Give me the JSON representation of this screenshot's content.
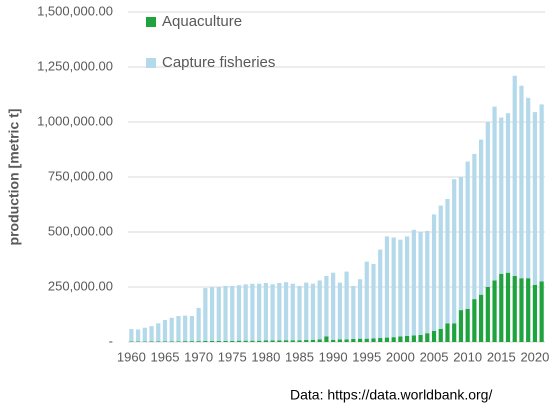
{
  "chart_data": {
    "type": "stacked_bar",
    "y_label": "production [metric t]",
    "annotation": "Data: https://data.worldbank.org/",
    "categories": [
      "1960",
      null,
      null,
      null,
      null,
      "1965",
      null,
      null,
      null,
      null,
      "1970",
      null,
      null,
      null,
      null,
      "1975",
      null,
      null,
      null,
      null,
      "1980",
      null,
      null,
      null,
      null,
      "1985",
      null,
      null,
      null,
      null,
      "1990",
      null,
      null,
      null,
      null,
      "1995",
      null,
      null,
      null,
      null,
      "2000",
      null,
      null,
      null,
      null,
      "2005",
      null,
      null,
      null,
      null,
      "2010",
      null,
      null,
      null,
      null,
      "2015",
      null,
      null,
      null,
      null,
      "2020",
      null
    ],
    "series": [
      {
        "name": "Aquaculture",
        "color": "#1fa33f",
        "values": [
          2000,
          2000,
          2000,
          3000,
          3000,
          3000,
          3000,
          3000,
          4000,
          4000,
          4000,
          5000,
          5000,
          5000,
          5000,
          5000,
          6000,
          6000,
          6000,
          6000,
          7000,
          7000,
          7000,
          8000,
          8000,
          8000,
          9000,
          10000,
          12000,
          25000,
          10000,
          12000,
          12000,
          14000,
          15000,
          15000,
          16000,
          18000,
          20000,
          22000,
          25000,
          28000,
          30000,
          32000,
          40000,
          50000,
          60000,
          85000,
          85000,
          145000,
          150000,
          195000,
          215000,
          250000,
          280000,
          310000,
          315000,
          300000,
          290000,
          290000,
          260000,
          275000
        ]
      },
      {
        "name": "Capture fisheries",
        "color": "#b4d9ea",
        "values": [
          57000,
          55000,
          63000,
          69000,
          82000,
          97000,
          107000,
          115000,
          116000,
          114000,
          151000,
          240000,
          243000,
          245000,
          250000,
          250000,
          252000,
          256000,
          259000,
          259000,
          261000,
          255000,
          261000,
          264000,
          257000,
          247000,
          261000,
          255000,
          268000,
          275000,
          305000,
          258000,
          308000,
          241000,
          270000,
          350000,
          339000,
          402000,
          460000,
          453000,
          440000,
          452000,
          480000,
          468000,
          465000,
          530000,
          560000,
          565000,
          655000,
          605000,
          670000,
          660000,
          705000,
          750000,
          790000,
          710000,
          725000,
          910000,
          875000,
          820000,
          785000,
          805000
        ]
      }
    ],
    "ylim": [
      0,
      1500000
    ],
    "yticks": [
      {
        "value": 0,
        "label": "-"
      },
      {
        "value": 250000,
        "label": "250,000.00"
      },
      {
        "value": 500000,
        "label": "500,000.00"
      },
      {
        "value": 750000,
        "label": "750,000.00"
      },
      {
        "value": 1000000,
        "label": "1,000,000.00"
      },
      {
        "value": 1250000,
        "label": "1,250,000.00"
      },
      {
        "value": 1500000,
        "label": "1,500,000.00"
      }
    ],
    "grid": true,
    "legend": "top-left"
  }
}
